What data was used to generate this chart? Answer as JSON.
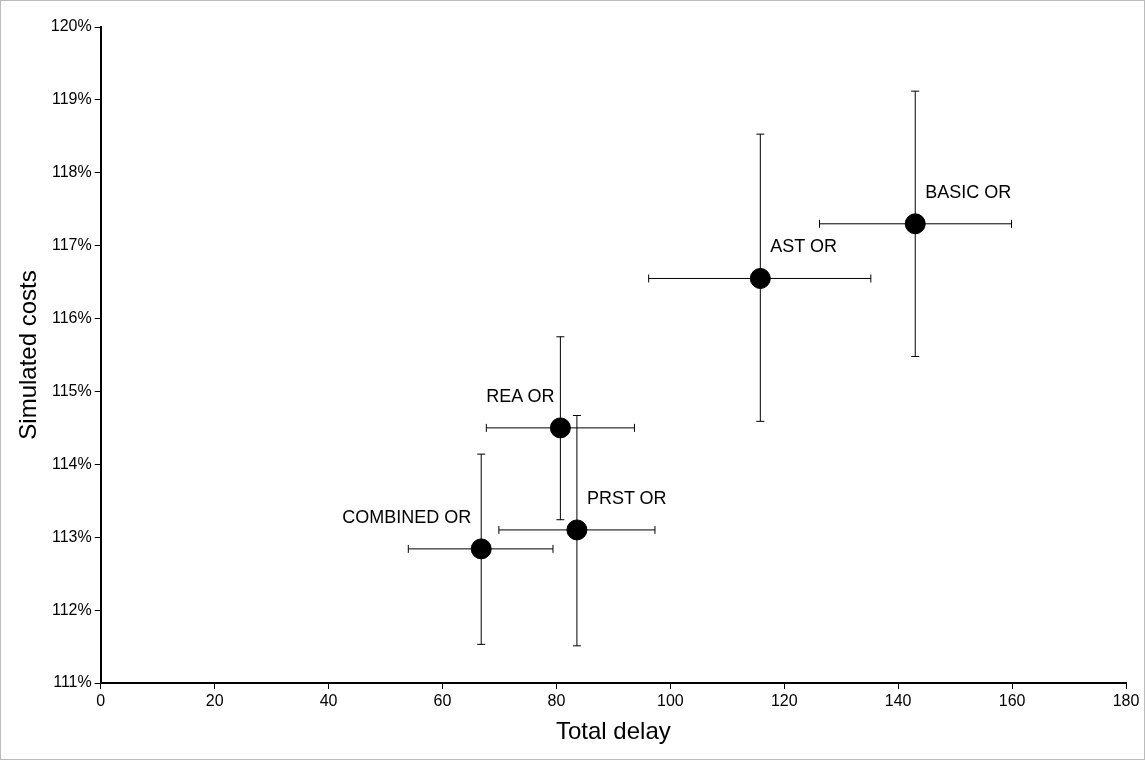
{
  "chart_data": {
    "type": "scatter",
    "xlabel": "Total delay",
    "ylabel": "Simulated costs",
    "x": [
      143.0,
      115.8,
      80.7,
      83.6,
      66.8
    ],
    "series": [
      {
        "color": "#000000",
        "values": [
          117.3,
          116.55,
          114.5,
          113.1,
          112.84
        ],
        "errors": [
          [
            115.48,
            119.12
          ],
          [
            114.59,
            118.53
          ],
          [
            113.24,
            115.75
          ],
          [
            111.51,
            114.67
          ],
          [
            111.53,
            114.14
          ]
        ],
        "xerrors": [
          [
            126.2,
            159.9
          ],
          [
            96.2,
            135.2
          ],
          [
            67.7,
            93.7
          ],
          [
            69.9,
            97.3
          ],
          [
            54.0,
            79.4
          ]
        ]
      }
    ],
    "annotations": [
      {
        "text": "BASIC OR",
        "x": 143.0,
        "y": 117.3
      },
      {
        "text": "AST OR",
        "x": 115.8,
        "y": 116.55
      },
      {
        "text": "REA OR",
        "x": 80.7,
        "y": 114.5
      },
      {
        "text": "PRST OR",
        "x": 83.6,
        "y": 113.1
      },
      {
        "text": "COMBINED OR",
        "x": 66.8,
        "y": 112.84
      }
    ],
    "xlim": [
      0,
      180
    ],
    "xticks": [
      0,
      20,
      40,
      60,
      80,
      100,
      120,
      140,
      160,
      180
    ],
    "ylim": [
      111,
      120
    ],
    "yticks": [
      {
        "value": 111,
        "label": "111%"
      },
      {
        "value": 112,
        "label": "112%"
      },
      {
        "value": 113,
        "label": "113%"
      },
      {
        "value": 114,
        "label": "114%"
      },
      {
        "value": 115,
        "label": "115%"
      },
      {
        "value": 116,
        "label": "116%"
      },
      {
        "value": 117,
        "label": "117%"
      },
      {
        "value": 118,
        "label": "118%"
      },
      {
        "value": 119,
        "label": "119%"
      },
      {
        "value": 120,
        "label": "120%"
      }
    ],
    "grid": false,
    "legend": false,
    "marker": "circle"
  }
}
